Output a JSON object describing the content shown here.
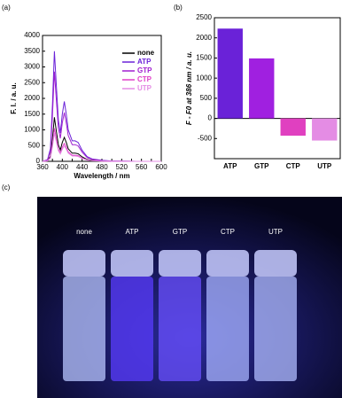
{
  "panel_labels": [
    "(a)",
    "(b)",
    "(c)"
  ],
  "chart_data": [
    {
      "type": "line",
      "xlabel": "Wavelength / nm",
      "ylabel": "F. I. / a. u.",
      "x": [
        360,
        370,
        376,
        380,
        384,
        388,
        392,
        396,
        400,
        404,
        408,
        412,
        420,
        426,
        432,
        440,
        450,
        460,
        480,
        500,
        550,
        600
      ],
      "series": [
        {
          "name": "none",
          "color": "#000000",
          "values": [
            0,
            20,
            160,
            720,
            1400,
            960,
            520,
            360,
            600,
            760,
            600,
            400,
            260,
            260,
            240,
            140,
            60,
            30,
            12,
            4,
            0,
            0
          ]
        },
        {
          "name": "ATP",
          "color": "#6a22d8",
          "values": [
            0,
            50,
            400,
            1800,
            3500,
            2400,
            1300,
            900,
            1500,
            1900,
            1500,
            1000,
            650,
            650,
            600,
            350,
            150,
            80,
            30,
            10,
            0,
            0
          ]
        },
        {
          "name": "GTP",
          "color": "#a020d0",
          "values": [
            0,
            40,
            320,
            1450,
            2850,
            1950,
            1050,
            730,
            1220,
            1550,
            1220,
            820,
            530,
            530,
            490,
            290,
            120,
            65,
            25,
            8,
            0,
            0
          ]
        },
        {
          "name": "CTP",
          "color": "#e040c8",
          "values": [
            0,
            15,
            120,
            540,
            1050,
            720,
            390,
            270,
            450,
            570,
            450,
            300,
            195,
            195,
            180,
            105,
            45,
            24,
            9,
            3,
            0,
            0
          ]
        },
        {
          "name": "UTP",
          "color": "#e48ce4",
          "values": [
            0,
            13,
            100,
            460,
            900,
            620,
            335,
            230,
            385,
            490,
            385,
            260,
            170,
            170,
            155,
            90,
            40,
            20,
            8,
            3,
            0,
            0
          ]
        }
      ],
      "xlim": [
        360,
        600
      ],
      "xticks": [
        360,
        380,
        400,
        420,
        440,
        460,
        480,
        500,
        520,
        540,
        560,
        580,
        600
      ],
      "ylim": [
        0,
        4000
      ],
      "yticks": [
        0,
        500,
        1000,
        1500,
        2000,
        2500,
        3000,
        3500,
        4000
      ],
      "legend": "upper right"
    },
    {
      "type": "bar",
      "ylabel": "F - F0 at 386 nm / a. u.",
      "categories": [
        "ATP",
        "GTP",
        "CTP",
        "UTP"
      ],
      "values": [
        2230,
        1490,
        -430,
        -550
      ],
      "colors": [
        "#6a22d8",
        "#a020e0",
        "#e040c0",
        "#e48ce4"
      ],
      "ylim": [
        -1000,
        2500
      ],
      "yticks": [
        -500,
        0,
        500,
        1000,
        1500,
        2000,
        2500
      ]
    }
  ],
  "photo": {
    "labels": [
      "none",
      "ATP",
      "GTP",
      "CTP",
      "UTP"
    ]
  }
}
